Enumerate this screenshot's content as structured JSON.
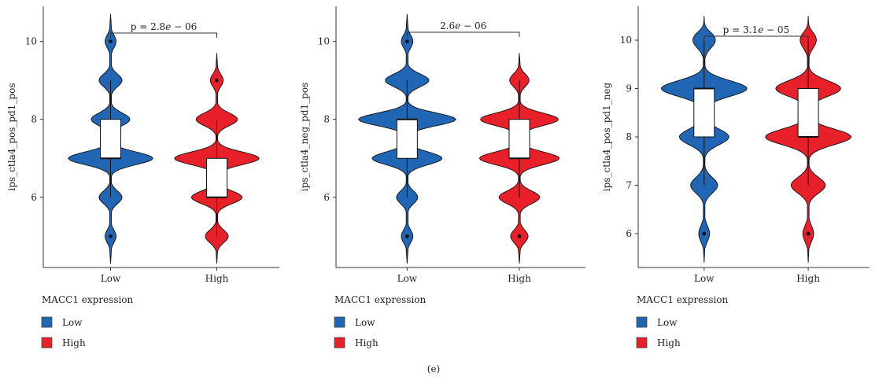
{
  "caption": "(e)",
  "colors": {
    "Low": "#2166b4",
    "High": "#e8202a",
    "outline": "#111111"
  },
  "chart_data": [
    {
      "type": "violin",
      "ylabel": "ips_ctla4_pos_pd1_pos",
      "xlabel": "",
      "ylim": [
        4.2,
        10.9
      ],
      "yticks": [
        "6",
        "8",
        "10"
      ],
      "grid": false,
      "categories": [
        "Low",
        "High"
      ],
      "pvalue": {
        "prefix": "p = 2.8",
        "e": "e",
        "suffix": " − 06"
      },
      "legend": {
        "title": "MACC1 expression",
        "items": [
          "Low",
          "High"
        ],
        "placement": "bottom"
      },
      "series": [
        {
          "name": "Low",
          "box": {
            "q1": 7,
            "median": 7,
            "q3": 8,
            "whisker_low": 6,
            "whisker_high": 9
          },
          "outliers": [
            5,
            10
          ],
          "density": {
            "min": 4.3,
            "max": 10.7,
            "peaks": [
              [
                5,
                0.12
              ],
              [
                6,
                0.25
              ],
              [
                7,
                0.92
              ],
              [
                8,
                0.42
              ],
              [
                9,
                0.25
              ],
              [
                10,
                0.12
              ]
            ]
          }
        },
        {
          "name": "High",
          "box": {
            "q1": 6,
            "median": 6,
            "q3": 7,
            "whisker_low": 5,
            "whisker_high": 8
          },
          "outliers": [
            9
          ],
          "density": {
            "min": 4.3,
            "max": 9.7,
            "peaks": [
              [
                5,
                0.25
              ],
              [
                6,
                0.55
              ],
              [
                7,
                0.92
              ],
              [
                8,
                0.45
              ],
              [
                9,
                0.14
              ]
            ]
          }
        }
      ]
    },
    {
      "type": "violin",
      "ylabel": "ips_ctla4_neg_pd1_pos",
      "xlabel": "",
      "ylim": [
        4.2,
        10.9
      ],
      "yticks": [
        "6",
        "8",
        "10"
      ],
      "grid": false,
      "categories": [
        "Low",
        "High"
      ],
      "pvalue": {
        "prefix": "2.6",
        "e": "e",
        "suffix": " − 06"
      },
      "legend": {
        "title": "MACC1 expression",
        "items": [
          "Low",
          "High"
        ],
        "placement": "bottom"
      },
      "series": [
        {
          "name": "Low",
          "box": {
            "q1": 7,
            "median": 8,
            "q3": 8,
            "whisker_low": 6,
            "whisker_high": 9
          },
          "outliers": [
            5,
            10
          ],
          "density": {
            "min": 4.3,
            "max": 10.7,
            "peaks": [
              [
                5,
                0.12
              ],
              [
                6,
                0.22
              ],
              [
                7,
                0.72
              ],
              [
                8,
                1.0
              ],
              [
                9,
                0.45
              ],
              [
                10,
                0.12
              ]
            ]
          }
        },
        {
          "name": "High",
          "box": {
            "q1": 7,
            "median": 7,
            "q3": 8,
            "whisker_low": 6,
            "whisker_high": 9
          },
          "outliers": [
            5
          ],
          "density": {
            "min": 4.3,
            "max": 9.7,
            "peaks": [
              [
                5,
                0.18
              ],
              [
                6,
                0.42
              ],
              [
                7,
                0.82
              ],
              [
                8,
                0.8
              ],
              [
                9,
                0.2
              ]
            ]
          }
        }
      ]
    },
    {
      "type": "violin",
      "ylabel": "ips_ctla4_pos_pd1_neg",
      "xlabel": "",
      "ylim": [
        5.3,
        10.7
      ],
      "yticks": [
        "6",
        "7",
        "8",
        "9",
        "10"
      ],
      "grid": false,
      "categories": [
        "Low",
        "High"
      ],
      "pvalue": {
        "prefix": "p = 3.1",
        "e": "e",
        "suffix": " − 05"
      },
      "legend": {
        "title": "MACC1 expression",
        "items": [
          "Low",
          "High"
        ],
        "placement": "bottom"
      },
      "series": [
        {
          "name": "Low",
          "box": {
            "q1": 8,
            "median": 9,
            "q3": 9,
            "whisker_low": 7,
            "whisker_high": 10
          },
          "outliers": [
            6
          ],
          "density": {
            "min": 5.4,
            "max": 10.5,
            "peaks": [
              [
                6,
                0.12
              ],
              [
                7,
                0.3
              ],
              [
                8,
                0.55
              ],
              [
                9,
                0.95
              ],
              [
                10,
                0.25
              ]
            ]
          }
        },
        {
          "name": "High",
          "box": {
            "q1": 8,
            "median": 8,
            "q3": 9,
            "whisker_low": 7,
            "whisker_high": 10
          },
          "outliers": [
            6
          ],
          "density": {
            "min": 5.4,
            "max": 10.5,
            "peaks": [
              [
                6,
                0.12
              ],
              [
                7,
                0.38
              ],
              [
                8,
                0.95
              ],
              [
                9,
                0.72
              ],
              [
                10,
                0.18
              ]
            ]
          }
        }
      ]
    }
  ]
}
